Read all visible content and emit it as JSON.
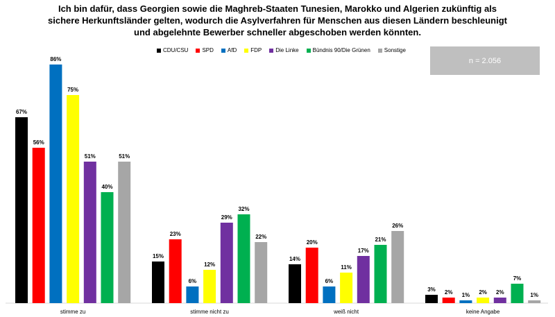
{
  "title_lines": [
    "Ich bin dafür, dass Georgien sowie die Maghreb-Staaten Tunesien, Marokko und Algerien zukünftig als",
    "sichere Herkunftsländer gelten, wodurch die Asylverfahren für Menschen aus diesen Ländern beschleunigt",
    "und abgelehnte Bewerber schneller abgeschoben werden könnten."
  ],
  "sample_box": "n = 2.056",
  "chart_data": {
    "type": "bar",
    "title": "Ich bin dafür, dass Georgien sowie die Maghreb-Staaten Tunesien, Marokko und Algerien zukünftig als sichere Herkunftsländer gelten, wodurch die Asylverfahren für Menschen aus diesen Ländern beschleunigt und abgelehnte Bewerber schneller abgeschoben werden könnten.",
    "categories": [
      "stimme zu",
      "stimme nicht zu",
      "weiß nicht",
      "keine Angabe"
    ],
    "series": [
      {
        "name": "CDU/CSU",
        "color": "#000000",
        "values": [
          67,
          15,
          14,
          3
        ]
      },
      {
        "name": "SPD",
        "color": "#ff0000",
        "values": [
          56,
          23,
          20,
          2
        ]
      },
      {
        "name": "AfD",
        "color": "#0070c0",
        "values": [
          86,
          6,
          6,
          1
        ]
      },
      {
        "name": "FDP",
        "color": "#ffff00",
        "values": [
          75,
          12,
          11,
          2
        ]
      },
      {
        "name": "Die Linke",
        "color": "#7030a0",
        "values": [
          51,
          29,
          17,
          2
        ]
      },
      {
        "name": "Bündnis 90/Die Grünen",
        "color": "#00b050",
        "values": [
          40,
          32,
          21,
          7
        ]
      },
      {
        "name": "Sonstige",
        "color": "#a6a6a6",
        "values": [
          51,
          22,
          26,
          1
        ]
      }
    ],
    "value_suffix": "%",
    "ylim": [
      0,
      100
    ],
    "grid": false,
    "legend_position": "top-center"
  }
}
